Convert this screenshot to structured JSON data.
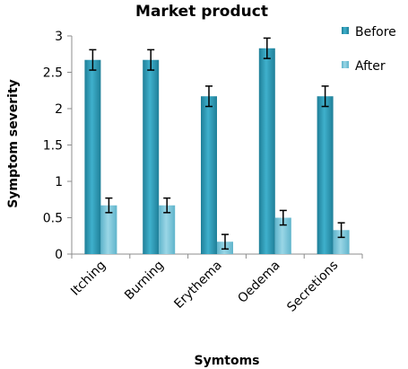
{
  "chart_data": {
    "type": "bar",
    "title": "Market product",
    "xlabel": "Symtoms",
    "ylabel": "Symptom severity",
    "categories": [
      "Itching",
      "Burning",
      "Erythema",
      "Oedema",
      "Secretions"
    ],
    "series": [
      {
        "name": "Before",
        "values": [
          2.67,
          2.67,
          2.17,
          2.83,
          2.17
        ],
        "errors": [
          0.14,
          0.14,
          0.14,
          0.14,
          0.14
        ],
        "color": "#2D9CB8"
      },
      {
        "name": "After",
        "values": [
          0.67,
          0.67,
          0.17,
          0.5,
          0.33
        ],
        "errors": [
          0.1,
          0.1,
          0.1,
          0.1,
          0.1
        ],
        "color": "#7DC8DD"
      }
    ],
    "ylim": [
      0,
      3
    ],
    "yticks": [
      "0",
      "0.5",
      "1",
      "1.5",
      "2",
      "2.5",
      "3"
    ],
    "grid": false,
    "legend_position": "top-right"
  }
}
